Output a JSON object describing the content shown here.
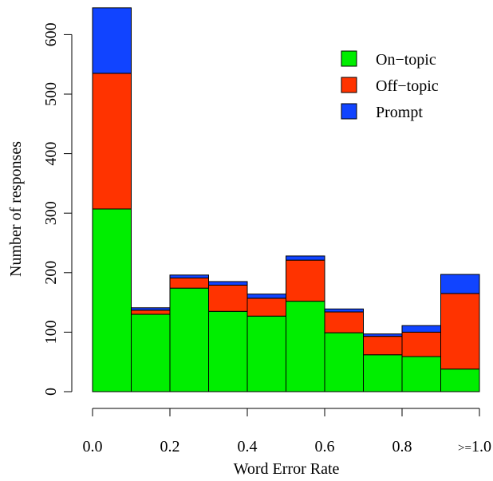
{
  "chart_data": {
    "type": "bar",
    "stacked": true,
    "xlabel": "Word Error Rate",
    "ylabel": "Number of responses",
    "ylim": [
      0,
      650
    ],
    "xlim": [
      0,
      1.0
    ],
    "categories": [
      "0.0–0.1",
      "0.1–0.2",
      "0.2–0.3",
      "0.3–0.4",
      "0.4–0.5",
      "0.5–0.6",
      "0.6–0.7",
      "0.7–0.8",
      "0.8–0.9",
      "0.9–1.0"
    ],
    "bins": [
      0.0,
      0.1,
      0.2,
      0.3,
      0.4,
      0.5,
      0.6,
      0.7,
      0.8,
      0.9,
      1.0
    ],
    "series": [
      {
        "name": "On−topic",
        "color": "#00ee00",
        "values": [
          307,
          130,
          174,
          135,
          127,
          152,
          99,
          62,
          59,
          38
        ]
      },
      {
        "name": "Off−topic",
        "color": "#ff3300",
        "values": [
          228,
          7,
          17,
          44,
          30,
          69,
          35,
          31,
          41,
          127
        ]
      },
      {
        "name": "Prompt",
        "color": "#1144ff",
        "values": [
          110,
          4,
          5,
          6,
          7,
          7,
          5,
          4,
          11,
          32
        ]
      }
    ],
    "yticks": [
      0,
      100,
      200,
      300,
      400,
      500,
      600
    ],
    "xticks": [
      {
        "value": 0.0,
        "label": "0.0"
      },
      {
        "value": 0.2,
        "label": "0.2"
      },
      {
        "value": 0.4,
        "label": "0.4"
      },
      {
        "value": 0.6,
        "label": "0.6"
      },
      {
        "value": 0.8,
        "label": "0.8"
      },
      {
        "value": 1.0,
        "label": "1.0",
        "prefix": ">="
      }
    ],
    "legend": {
      "position": "top-right"
    },
    "grid": false
  }
}
